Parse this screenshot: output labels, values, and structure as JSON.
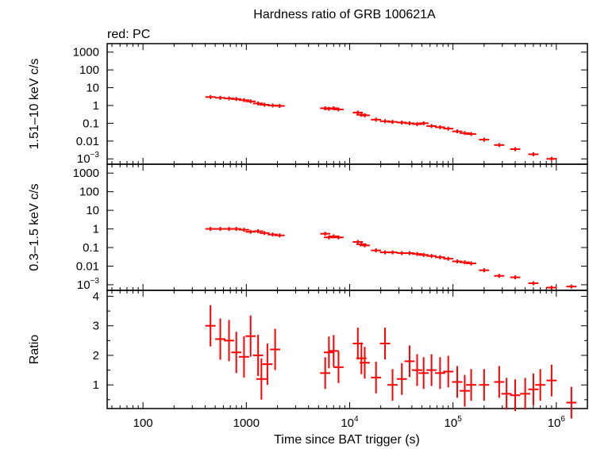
{
  "chart_data": {
    "title": "Hardness ratio of GRB 100621A",
    "subtitle": "red: PC",
    "type": "scatter",
    "xlabel": "Time since BAT trigger (s)",
    "xscale": "log",
    "xlim": [
      45,
      2000000
    ],
    "xticks": [
      {
        "value": 100,
        "label": "100"
      },
      {
        "value": 1000,
        "label": "1000"
      },
      {
        "value": 10000,
        "base": "10",
        "exp": "4"
      },
      {
        "value": 100000,
        "base": "10",
        "exp": "5"
      },
      {
        "value": 1000000,
        "base": "10",
        "exp": "6"
      }
    ],
    "series_color": "#ff0000",
    "panels": [
      {
        "id": "hard",
        "ylabel": "1.51–10 keV c/s",
        "yscale": "log",
        "ylim": [
          0.0005,
          3000
        ],
        "yticks": [
          {
            "value": 1000,
            "label": "1000"
          },
          {
            "value": 100,
            "label": "100"
          },
          {
            "value": 10,
            "label": "10"
          },
          {
            "value": 1,
            "label": "1"
          },
          {
            "value": 0.1,
            "label": "0.1"
          },
          {
            "value": 0.01,
            "label": "0.01"
          },
          {
            "value": 0.001,
            "base": "10",
            "exp": "−3"
          }
        ],
        "points": [
          [
            450,
            3.0
          ],
          [
            560,
            2.7
          ],
          [
            680,
            2.5
          ],
          [
            800,
            2.3
          ],
          [
            950,
            2.0
          ],
          [
            1100,
            1.7
          ],
          [
            1300,
            1.3
          ],
          [
            1500,
            1.1
          ],
          [
            1800,
            1.0
          ],
          [
            2100,
            0.95
          ],
          [
            5800,
            0.7
          ],
          [
            6300,
            0.65
          ],
          [
            7000,
            0.7
          ],
          [
            7800,
            0.6
          ],
          [
            12000,
            0.4
          ],
          [
            13000,
            0.3
          ],
          [
            14000,
            0.28
          ],
          [
            18000,
            0.16
          ],
          [
            22000,
            0.13
          ],
          [
            26000,
            0.12
          ],
          [
            32000,
            0.11
          ],
          [
            38000,
            0.1
          ],
          [
            45000,
            0.09
          ],
          [
            52000,
            0.1
          ],
          [
            62000,
            0.07
          ],
          [
            75000,
            0.06
          ],
          [
            90000,
            0.05
          ],
          [
            110000,
            0.035
          ],
          [
            130000,
            0.028
          ],
          [
            150000,
            0.025
          ],
          [
            200000,
            0.012
          ],
          [
            280000,
            0.006
          ],
          [
            400000,
            0.0035
          ],
          [
            600000,
            0.0018
          ],
          [
            900000,
            0.001
          ]
        ]
      },
      {
        "id": "soft",
        "ylabel": "0.3–1.5 keV c/s",
        "yscale": "log",
        "ylim": [
          0.0005,
          3000
        ],
        "yticks": [
          {
            "value": 1000,
            "label": "1000"
          },
          {
            "value": 100,
            "label": "100"
          },
          {
            "value": 10,
            "label": "10"
          },
          {
            "value": 1,
            "label": "1"
          },
          {
            "value": 0.1,
            "label": "0.1"
          },
          {
            "value": 0.01,
            "label": "0.01"
          },
          {
            "value": 0.001,
            "base": "10",
            "exp": "−3"
          }
        ],
        "points": [
          [
            450,
            1.0
          ],
          [
            560,
            1.0
          ],
          [
            680,
            1.0
          ],
          [
            800,
            1.0
          ],
          [
            950,
            0.9
          ],
          [
            1100,
            0.7
          ],
          [
            1300,
            0.75
          ],
          [
            1500,
            0.6
          ],
          [
            1800,
            0.5
          ],
          [
            2100,
            0.45
          ],
          [
            5800,
            0.55
          ],
          [
            6300,
            0.35
          ],
          [
            7000,
            0.4
          ],
          [
            7800,
            0.35
          ],
          [
            12000,
            0.2
          ],
          [
            13000,
            0.15
          ],
          [
            14000,
            0.13
          ],
          [
            18000,
            0.07
          ],
          [
            22000,
            0.055
          ],
          [
            26000,
            0.055
          ],
          [
            32000,
            0.05
          ],
          [
            38000,
            0.05
          ],
          [
            45000,
            0.045
          ],
          [
            52000,
            0.04
          ],
          [
            62000,
            0.035
          ],
          [
            75000,
            0.03
          ],
          [
            90000,
            0.025
          ],
          [
            110000,
            0.018
          ],
          [
            130000,
            0.016
          ],
          [
            150000,
            0.014
          ],
          [
            200000,
            0.006
          ],
          [
            280000,
            0.003
          ],
          [
            400000,
            0.0025
          ],
          [
            600000,
            0.0012
          ],
          [
            900000,
            0.0007
          ],
          [
            1400000,
            0.0008
          ]
        ]
      },
      {
        "id": "ratio",
        "ylabel": "Ratio",
        "yscale": "linear",
        "ylim": [
          0.2,
          4.2
        ],
        "yticks": [
          {
            "value": 1,
            "label": "1"
          },
          {
            "value": 2,
            "label": "2"
          },
          {
            "value": 3,
            "label": "3"
          },
          {
            "value": 4,
            "label": "4"
          }
        ],
        "points": [
          [
            450,
            3.0
          ],
          [
            560,
            2.55
          ],
          [
            680,
            2.5
          ],
          [
            800,
            2.1
          ],
          [
            950,
            1.95
          ],
          [
            1100,
            2.65
          ],
          [
            1300,
            2.0
          ],
          [
            1400,
            1.2
          ],
          [
            1600,
            1.7
          ],
          [
            1900,
            2.2
          ],
          [
            5800,
            1.4
          ],
          [
            6300,
            2.1
          ],
          [
            7000,
            2.15
          ],
          [
            7800,
            1.6
          ],
          [
            12000,
            2.4
          ],
          [
            13000,
            1.9
          ],
          [
            14000,
            1.75
          ],
          [
            18000,
            1.25
          ],
          [
            22000,
            2.4
          ],
          [
            26000,
            1.0
          ],
          [
            32000,
            1.2
          ],
          [
            38000,
            1.8
          ],
          [
            45000,
            1.5
          ],
          [
            52000,
            1.4
          ],
          [
            62000,
            1.5
          ],
          [
            75000,
            1.4
          ],
          [
            90000,
            1.45
          ],
          [
            110000,
            1.1
          ],
          [
            130000,
            0.8
          ],
          [
            150000,
            1.0
          ],
          [
            200000,
            1.0
          ],
          [
            280000,
            1.1
          ],
          [
            330000,
            0.7
          ],
          [
            400000,
            0.65
          ],
          [
            500000,
            0.7
          ],
          [
            600000,
            0.85
          ],
          [
            700000,
            1.0
          ],
          [
            900000,
            1.15
          ],
          [
            1400000,
            0.4
          ]
        ]
      }
    ]
  }
}
